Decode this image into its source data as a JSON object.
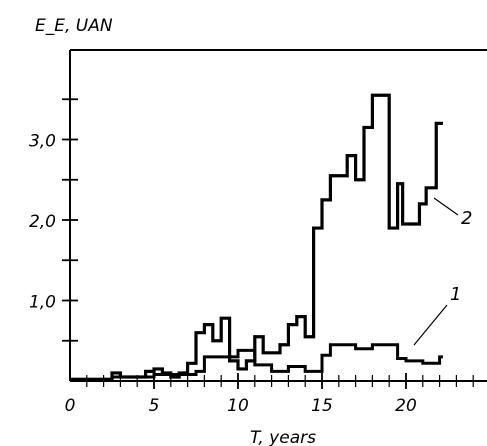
{
  "chart_data": {
    "type": "line",
    "ylabel": "E_E, UAN",
    "xlabel": "T, years",
    "xlim": [
      0,
      24
    ],
    "ylim": [
      0,
      4.0
    ],
    "x_ticks": [
      0,
      5,
      10,
      15,
      20
    ],
    "x_tick_labels": [
      "0",
      "5",
      "10",
      "15",
      "20"
    ],
    "y_minor_ticks": [
      0.5,
      1.5,
      2.5,
      3.5
    ],
    "y_ticks": [
      1.0,
      2.0,
      3.0
    ],
    "y_tick_labels": [
      "1,0",
      "2,0",
      "3,0"
    ],
    "grid": false,
    "series": [
      {
        "name": "1",
        "step": true,
        "x": [
          0,
          2,
          2.5,
          4.5,
          5,
          6,
          7.5,
          8,
          9.5,
          10,
          11,
          12,
          13,
          14,
          15,
          15.5,
          16,
          17,
          18,
          19.5,
          20,
          21,
          22
        ],
        "y": [
          0.02,
          0.02,
          0.05,
          0.05,
          0.08,
          0.08,
          0.12,
          0.3,
          0.3,
          0.38,
          0.2,
          0.12,
          0.18,
          0.12,
          0.32,
          0.45,
          0.45,
          0.4,
          0.45,
          0.28,
          0.25,
          0.22,
          0.3
        ]
      },
      {
        "name": "2",
        "step": true,
        "x": [
          0,
          2,
          2.5,
          3,
          4,
          4.5,
          5,
          5.5,
          6,
          6.5,
          7,
          7.5,
          8,
          8.5,
          9,
          9.5,
          10,
          10.5,
          11,
          11.5,
          12,
          12.5,
          13,
          13.5,
          14,
          14.5,
          15,
          15.5,
          16,
          16.5,
          17,
          17.5,
          18,
          18.5,
          19,
          19.5,
          19.8,
          20.2,
          20.8,
          21.2,
          21.8,
          22
        ],
        "y": [
          0.02,
          0.02,
          0.1,
          0.05,
          0.05,
          0.12,
          0.15,
          0.1,
          0.05,
          0.1,
          0.22,
          0.6,
          0.7,
          0.5,
          0.78,
          0.25,
          0.15,
          0.25,
          0.55,
          0.35,
          0.35,
          0.45,
          0.7,
          0.8,
          0.55,
          1.9,
          2.25,
          2.55,
          2.55,
          2.8,
          2.5,
          3.15,
          3.55,
          3.55,
          1.9,
          2.45,
          1.95,
          1.95,
          2.2,
          2.4,
          3.2,
          3.2
        ]
      }
    ]
  }
}
